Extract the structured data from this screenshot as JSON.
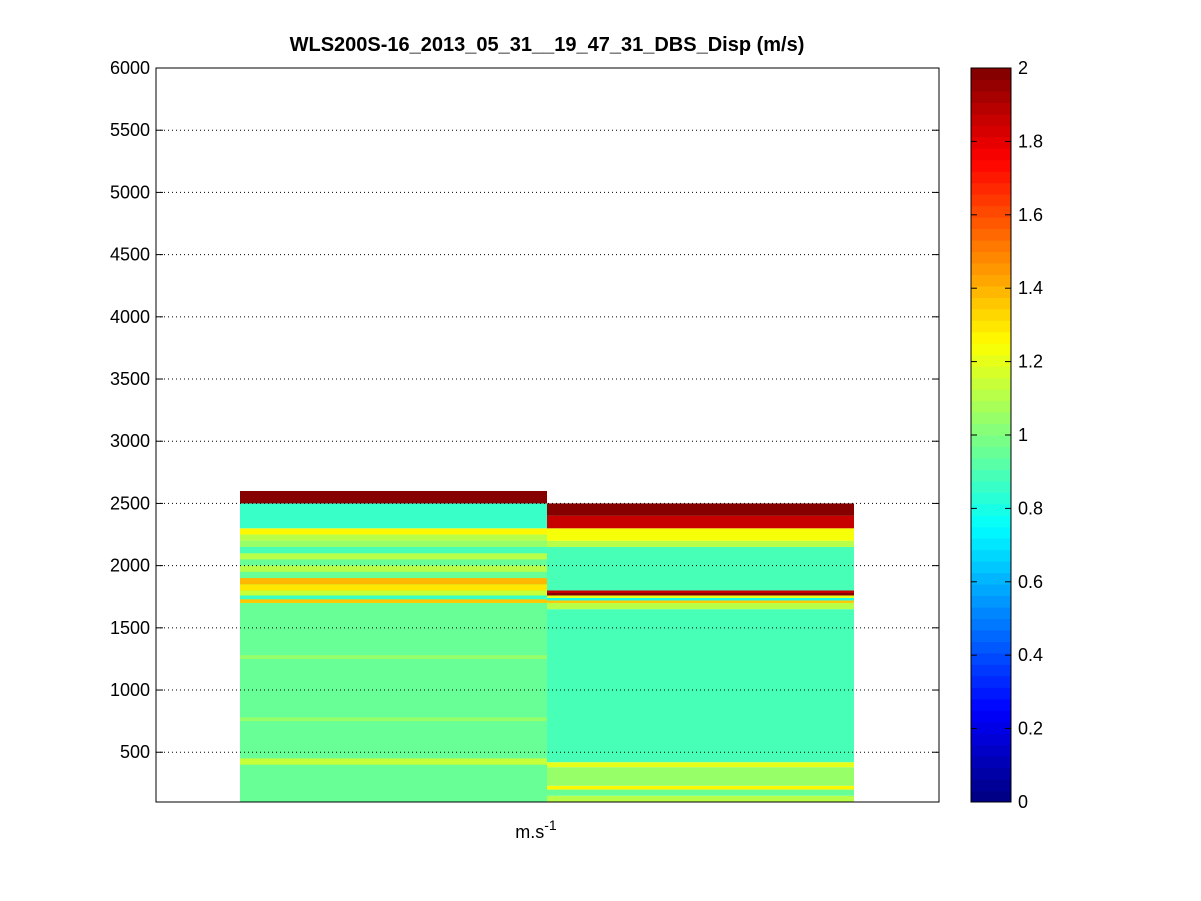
{
  "chart_data": {
    "type": "heatmap",
    "title": "WLS200S-16_2013_05_31__19_47_31_DBS_Disp (m/s)",
    "xlabel": "m.s",
    "xlabel_sup": "-1",
    "ylabel": "",
    "ylim": [
      100,
      6000
    ],
    "yticks": [
      500,
      1000,
      1500,
      2000,
      2500,
      3000,
      3500,
      4000,
      4500,
      5000,
      5500,
      6000
    ],
    "grid": "horizontal-dotted",
    "colormap": "jet",
    "clim": [
      0,
      2
    ],
    "colorbar_ticks": [
      0,
      0.2,
      0.4,
      0.6,
      0.8,
      1,
      1.2,
      1.4,
      1.6,
      1.8,
      2
    ],
    "columns": [
      {
        "cells": [
          {
            "y0": 100,
            "y1": 2200,
            "v": 0.95
          },
          {
            "y0": 400,
            "y1": 450,
            "v": 1.15
          },
          {
            "y0": 750,
            "y1": 780,
            "v": 1.05
          },
          {
            "y0": 1250,
            "y1": 1280,
            "v": 1.05
          },
          {
            "y0": 1700,
            "y1": 1730,
            "v": 1.35
          },
          {
            "y0": 1730,
            "y1": 1760,
            "v": 0.85
          },
          {
            "y0": 1760,
            "y1": 1800,
            "v": 1.15
          },
          {
            "y0": 1800,
            "y1": 1850,
            "v": 1.3
          },
          {
            "y0": 1850,
            "y1": 1900,
            "v": 1.4
          },
          {
            "y0": 1950,
            "y1": 2000,
            "v": 1.1
          },
          {
            "y0": 2050,
            "y1": 2100,
            "v": 1.1
          },
          {
            "y0": 2100,
            "y1": 2150,
            "v": 0.9
          },
          {
            "y0": 2150,
            "y1": 2200,
            "v": 1.05
          },
          {
            "y0": 2200,
            "y1": 2250,
            "v": 1.1
          },
          {
            "y0": 2250,
            "y1": 2300,
            "v": 1.25
          },
          {
            "y0": 2300,
            "y1": 2500,
            "v": 0.85
          },
          {
            "y0": 2500,
            "y1": 2600,
            "v": 2.0
          }
        ]
      },
      {
        "cells": [
          {
            "y0": 100,
            "y1": 150,
            "v": 1.1
          },
          {
            "y0": 150,
            "y1": 200,
            "v": 0.95
          },
          {
            "y0": 200,
            "y1": 230,
            "v": 1.25
          },
          {
            "y0": 230,
            "y1": 380,
            "v": 1.05
          },
          {
            "y0": 380,
            "y1": 420,
            "v": 1.2
          },
          {
            "y0": 420,
            "y1": 1650,
            "v": 0.9
          },
          {
            "y0": 1650,
            "y1": 1700,
            "v": 1.1
          },
          {
            "y0": 1700,
            "y1": 1720,
            "v": 1.35
          },
          {
            "y0": 1720,
            "y1": 1740,
            "v": 0.8
          },
          {
            "y0": 1740,
            "y1": 1760,
            "v": 1.2
          },
          {
            "y0": 1760,
            "y1": 1780,
            "v": 2.0
          },
          {
            "y0": 1780,
            "y1": 1800,
            "v": 1.85
          },
          {
            "y0": 1800,
            "y1": 2150,
            "v": 0.9
          },
          {
            "y0": 2150,
            "y1": 2200,
            "v": 1.1
          },
          {
            "y0": 2200,
            "y1": 2300,
            "v": 1.22
          },
          {
            "y0": 2300,
            "y1": 2400,
            "v": 1.85
          },
          {
            "y0": 2400,
            "y1": 2500,
            "v": 2.0
          }
        ]
      }
    ]
  }
}
